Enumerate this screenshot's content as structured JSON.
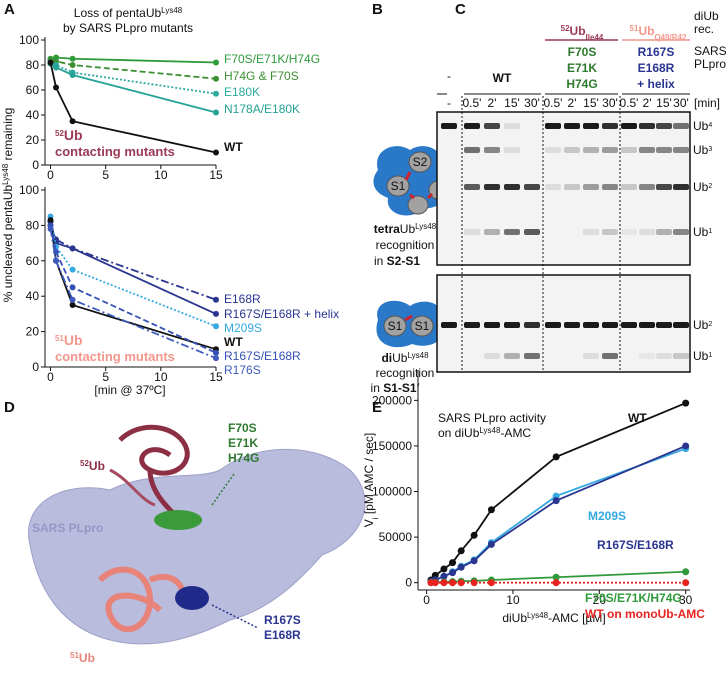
{
  "panel_labels": [
    "A",
    "B",
    "C",
    "D",
    "E"
  ],
  "chart_data": [
    {
      "type": "line",
      "title": [
        "Loss of pentaUb",
        "Lys48",
        "by SARS PLpro mutants"
      ],
      "ylabel": [
        "% uncleaved pentaUb",
        "Lys48",
        " remaining"
      ],
      "annotation": [
        "52",
        "Ub",
        "contacting mutants"
      ],
      "x": [
        0,
        0.5,
        2,
        15
      ],
      "xlim": [
        -0.5,
        15
      ],
      "xticks": [
        0,
        5,
        10,
        15
      ],
      "ylim": [
        0,
        100
      ],
      "yticks": [
        0,
        20,
        40,
        60,
        80,
        100
      ],
      "series": [
        {
          "name": "F70S/E71K/H74G",
          "color": "#2e9a3a",
          "style": "solid",
          "values": [
            85,
            86,
            85,
            82
          ]
        },
        {
          "name": "H74G & F70S",
          "color": "#3d8f33",
          "style": "dashed",
          "values": [
            84,
            83,
            80,
            69
          ]
        },
        {
          "name": "E180K",
          "color": "#2bab9e",
          "style": "dotted",
          "values": [
            82,
            80,
            74,
            57
          ]
        },
        {
          "name": "N178A/E180K",
          "color": "#25a396",
          "style": "solid",
          "values": [
            81,
            78,
            72,
            42
          ]
        },
        {
          "name": "WT",
          "color": "#111111",
          "style": "solid",
          "values": [
            82,
            62,
            35,
            10
          ]
        }
      ]
    },
    {
      "type": "line",
      "annotation": [
        "51",
        "Ub",
        "contacting mutants"
      ],
      "xlabel": "[min @ 37ºC]",
      "x": [
        0,
        0.5,
        2,
        15
      ],
      "xlim": [
        -0.5,
        15
      ],
      "xticks": [
        0,
        5,
        10,
        15
      ],
      "ylim": [
        0,
        100
      ],
      "yticks": [
        0,
        20,
        40,
        60,
        80,
        100
      ],
      "series": [
        {
          "name": "E168R",
          "color": "#2a3590",
          "style": "dashdot",
          "values": [
            80,
            72,
            67,
            38
          ]
        },
        {
          "name": "R167S/E168R + helix",
          "color": "#2a3590",
          "style": "solid",
          "values": [
            82,
            70,
            67,
            30
          ]
        },
        {
          "name": "M209S",
          "color": "#35a9e0",
          "style": "dotted",
          "values": [
            85,
            68,
            55,
            23
          ]
        },
        {
          "name": "WT",
          "color": "#111111",
          "style": "solid",
          "values": [
            83,
            60,
            35,
            10
          ]
        },
        {
          "name": "R167S/E168R",
          "color": "#3651b5",
          "style": "dashed",
          "values": [
            80,
            65,
            45,
            8
          ]
        },
        {
          "name": "R176S",
          "color": "#3d5abf",
          "style": "dashdot",
          "values": [
            78,
            60,
            38,
            5
          ]
        }
      ]
    },
    {
      "type": "line",
      "title": [
        "SARS PLpro activity",
        "on diUb",
        "Lys48",
        "-AMC"
      ],
      "xlabel": [
        "diUb",
        "Lys48",
        "-AMC [µM]"
      ],
      "ylabel": [
        "V",
        "i",
        " [pM AMC / sec]"
      ],
      "x": [
        0.5,
        1,
        2,
        3,
        4,
        5.5,
        7.5,
        15,
        30
      ],
      "xlim": [
        -1,
        30.5
      ],
      "xticks": [
        0,
        10,
        20,
        30
      ],
      "ylim": [
        -8000,
        230000
      ],
      "yticks": [
        0,
        50000,
        100000,
        150000,
        200000
      ],
      "series": [
        {
          "name": "WT",
          "color": "#111111",
          "style": "solid",
          "values": [
            3000,
            8000,
            15000,
            22000,
            35000,
            52000,
            80000,
            138000,
            197000
          ]
        },
        {
          "name": "M209S",
          "color": "#35a9e0",
          "style": "solid",
          "values": [
            1000,
            3000,
            7000,
            12000,
            18000,
            25000,
            44000,
            95000,
            147000
          ]
        },
        {
          "name": "R167S/E168R",
          "color": "#2a3590",
          "style": "solid",
          "values": [
            1000,
            3000,
            7000,
            11000,
            17000,
            24000,
            42000,
            90000,
            150000
          ]
        },
        {
          "name": "F70S/E71K/H74G",
          "color": "#2e9a3a",
          "style": "solid",
          "values": [
            200,
            400,
            800,
            1200,
            1600,
            2000,
            3000,
            6000,
            12000
          ]
        },
        {
          "name": "WT on monoUb-AMC",
          "color": "#e8231f",
          "style": "dotted",
          "values": [
            0,
            0,
            0,
            0,
            0,
            0,
            0,
            0,
            0
          ]
        }
      ]
    }
  ],
  "panel_b": {
    "top": {
      "sites": [
        "S2",
        "S1"
      ],
      "text": [
        "tetra",
        "Ub",
        "Lys48",
        "recognition",
        "in ",
        "S2-S1"
      ]
    },
    "bottom": {
      "sites": [
        "S1",
        "S1"
      ],
      "text": [
        "di",
        "Ub",
        "Lys48",
        "recognition",
        "in ",
        "S1-S1′"
      ]
    }
  },
  "panel_c": {
    "header_right": [
      "diUb",
      "rec.",
      "SARS",
      "PLpro",
      "[min]"
    ],
    "groups": [
      {
        "label": "-"
      },
      {
        "label": "WT"
      },
      {
        "title": [
          "52",
          "Ub",
          "Ile44"
        ],
        "label": [
          "F70S",
          "E71K",
          "H74G"
        ]
      },
      {
        "title": [
          "51",
          "Ub",
          "Q49/R42"
        ],
        "label": [
          "R167S",
          "E168R",
          "+ helix"
        ]
      }
    ],
    "times": [
      "-",
      "0.5'",
      "2'",
      "15'",
      "30'",
      "0.5'",
      "2'",
      "15'",
      "30'",
      "0.5'",
      "2'",
      "15'",
      "30'"
    ],
    "bands_top": [
      [
        "Ub",
        "4"
      ],
      [
        "Ub",
        "3"
      ],
      [
        "Ub",
        "2"
      ],
      [
        "Ub",
        "1"
      ]
    ],
    "bands_bottom": [
      [
        "Ub",
        "2"
      ],
      [
        "Ub",
        "1"
      ]
    ]
  },
  "panel_d": {
    "ub52": [
      "52",
      "Ub"
    ],
    "plpro": "SARS PLpro",
    "ub51": [
      "51",
      "Ub"
    ],
    "green": [
      "F70S",
      "E71K",
      "H74G"
    ],
    "navy": [
      "R167S",
      "E168R"
    ]
  }
}
